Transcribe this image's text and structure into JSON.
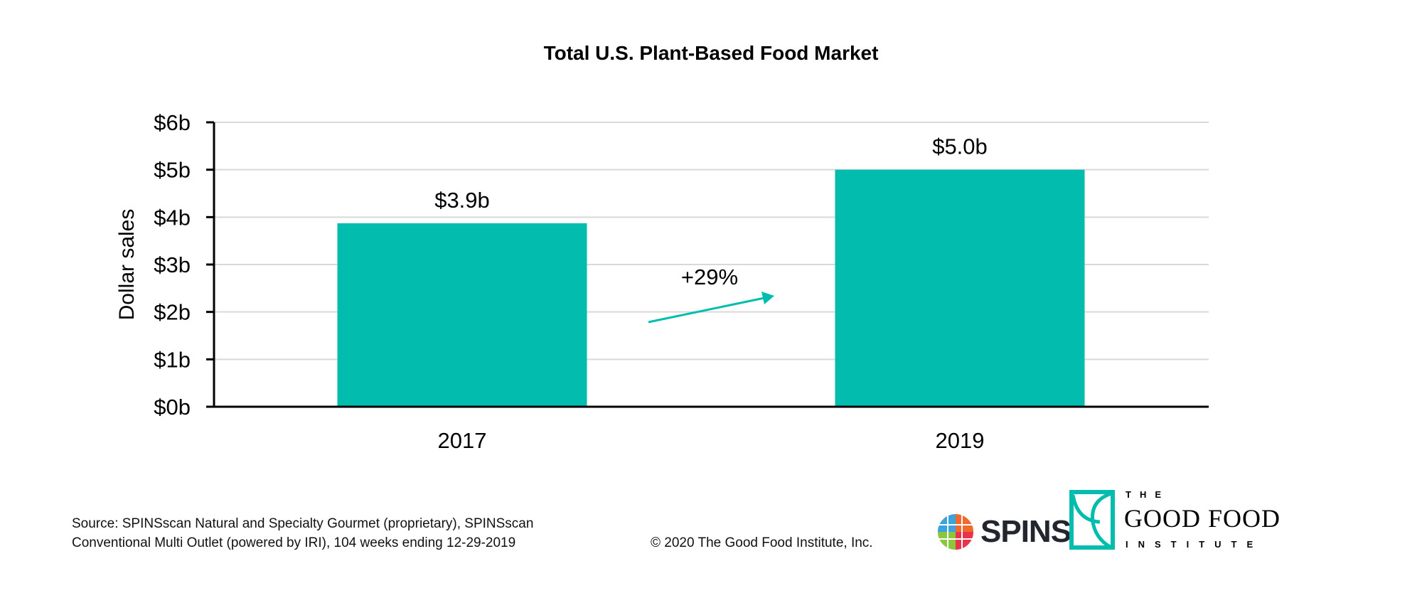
{
  "chart_data": {
    "type": "bar",
    "title": "Total U.S. Plant-Based Food Market",
    "xlabel": "",
    "ylabel": "Dollar sales",
    "categories": [
      "2017",
      "2019"
    ],
    "values": [
      3.87,
      5.0
    ],
    "data_labels": [
      "$3.9b",
      "$5.0b"
    ],
    "ylim": [
      0,
      6
    ],
    "yticks": [
      0,
      1,
      2,
      3,
      4,
      5,
      6
    ],
    "ytick_labels": [
      "$0b",
      "$1b",
      "$2b",
      "$3b",
      "$4b",
      "$5b",
      "$6b"
    ],
    "grid": true,
    "legend": "none",
    "bar_color": "#02BDAD",
    "annotation": {
      "text": "+29%",
      "arrow_color": "#02BDAD"
    }
  },
  "footer": {
    "source_line1": "Source: SPINSscan Natural and Specialty Gourmet (proprietary), SPINSscan",
    "source_line2": "Conventional Multi Outlet (powered by IRI), 104 weeks ending 12-29-2019",
    "copyright": "© 2020 The Good Food Institute, Inc."
  },
  "logos": {
    "spins": "SPINS",
    "gfi_the": "THE",
    "gfi_main": "GOOD FOOD",
    "gfi_sub": "INSTITUTE"
  }
}
